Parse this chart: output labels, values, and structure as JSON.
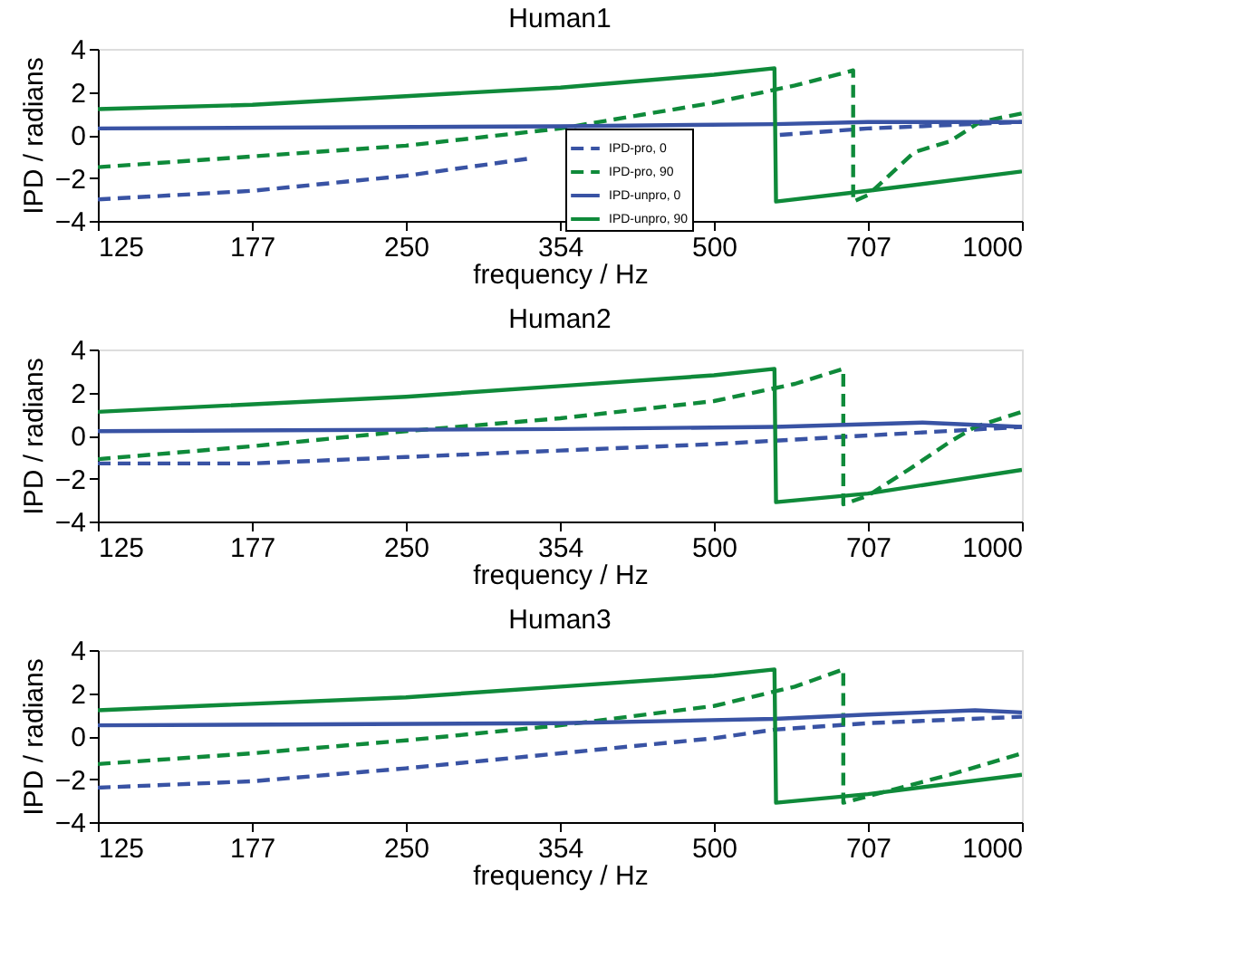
{
  "chart_data": [
    {
      "type": "line",
      "title": "Human1",
      "xlabel": "frequency / Hz",
      "ylabel": "IPD / radians",
      "log": "x",
      "grid": false,
      "legend": "bottom",
      "xlim": [
        125,
        1000
      ],
      "xticks": [
        125,
        {
          "value": 176.8,
          "label": "177"
        },
        250,
        {
          "value": 353.6,
          "label": "354"
        },
        500,
        {
          "value": 707.1,
          "label": "707"
        },
        1000
      ],
      "ylim": [
        -4,
        4
      ],
      "yticks": [
        -4,
        -2,
        0,
        2,
        4
      ],
      "series": [
        {
          "name": "IPD-pro, 0",
          "color": "#3953a4",
          "line_style": "dashed",
          "x": [
            125,
            177,
            250,
            330,
            450,
            580,
            707,
            1000
          ],
          "values": [
            -3.0,
            -2.6,
            -1.9,
            -1.1,
            null,
            0.0,
            0.3,
            0.6
          ]
        },
        {
          "name": "IPD-pro, 90",
          "color": "#0f8a3a",
          "line_style": "dashed",
          "x": [
            125,
            177,
            250,
            354,
            500,
            600,
            684,
            684,
            707,
            785,
            850,
            910,
            1000
          ],
          "values": [
            -1.5,
            -1.0,
            -0.5,
            0.3,
            1.5,
            2.3,
            3.0,
            -3.1,
            -2.8,
            -0.8,
            -0.3,
            0.6,
            1.0
          ]
        },
        {
          "name": "IPD-unpro, 0",
          "color": "#3953a4",
          "line_style": "solid",
          "x": [
            125,
            354,
            573,
            707,
            1000
          ],
          "values": [
            0.3,
            0.4,
            0.5,
            0.6,
            0.6
          ]
        },
        {
          "name": "IPD-unpro, 90",
          "color": "#0f8a3a",
          "line_style": "solid",
          "x": [
            125,
            177,
            250,
            354,
            500,
            573,
            575,
            707,
            1000
          ],
          "values": [
            1.2,
            1.4,
            1.8,
            2.2,
            2.8,
            3.1,
            -3.1,
            -2.6,
            -1.7
          ]
        }
      ]
    },
    {
      "type": "line",
      "title": "Human2",
      "xlabel": "frequency / Hz",
      "ylabel": "IPD / radians",
      "log": "x",
      "grid": false,
      "xlim": [
        125,
        1000
      ],
      "xticks": [
        125,
        {
          "value": 176.8,
          "label": "177"
        },
        250,
        {
          "value": 353.6,
          "label": "354"
        },
        500,
        {
          "value": 707.1,
          "label": "707"
        },
        1000
      ],
      "ylim": [
        -4,
        4
      ],
      "yticks": [
        -4,
        -2,
        0,
        2,
        4
      ],
      "series": [
        {
          "color": "#3953a4",
          "line_style": "dashed",
          "x": [
            125,
            177,
            250,
            354,
            500,
            707,
            1000
          ],
          "values": [
            -1.3,
            -1.3,
            -1.0,
            -0.7,
            -0.4,
            0.0,
            0.4
          ]
        },
        {
          "color": "#0f8a3a",
          "line_style": "dashed",
          "x": [
            125,
            177,
            250,
            354,
            500,
            600,
            669,
            669,
            707,
            780,
            850,
            900,
            1000
          ],
          "values": [
            -1.1,
            -0.5,
            0.2,
            0.8,
            1.6,
            2.4,
            3.1,
            -3.2,
            -2.8,
            -1.5,
            -0.3,
            0.4,
            1.1
          ]
        },
        {
          "color": "#3953a4",
          "line_style": "solid",
          "x": [
            125,
            354,
            573,
            800,
            1000
          ],
          "values": [
            0.2,
            0.3,
            0.4,
            0.6,
            0.4
          ]
        },
        {
          "color": "#0f8a3a",
          "line_style": "solid",
          "x": [
            125,
            250,
            354,
            500,
            573,
            575,
            707,
            1000
          ],
          "values": [
            1.1,
            1.8,
            2.3,
            2.8,
            3.1,
            -3.1,
            -2.7,
            -1.6
          ]
        }
      ]
    },
    {
      "type": "line",
      "title": "Human3",
      "xlabel": "frequency / Hz",
      "ylabel": "IPD / radians",
      "log": "x",
      "grid": false,
      "xlim": [
        125,
        1000
      ],
      "xticks": [
        125,
        {
          "value": 176.8,
          "label": "177"
        },
        250,
        {
          "value": 353.6,
          "label": "354"
        },
        500,
        {
          "value": 707.1,
          "label": "707"
        },
        1000
      ],
      "ylim": [
        -4,
        4
      ],
      "yticks": [
        -4,
        -2,
        0,
        2,
        4
      ],
      "series": [
        {
          "color": "#3953a4",
          "line_style": "dashed",
          "x": [
            125,
            177,
            250,
            354,
            500,
            573,
            707,
            1000
          ],
          "values": [
            -2.4,
            -2.1,
            -1.5,
            -0.8,
            -0.1,
            0.3,
            0.6,
            0.9
          ]
        },
        {
          "color": "#0f8a3a",
          "line_style": "dashed",
          "x": [
            125,
            177,
            250,
            354,
            500,
            600,
            669,
            669,
            707,
            850,
            1000
          ],
          "values": [
            -1.3,
            -0.8,
            -0.2,
            0.5,
            1.4,
            2.3,
            3.1,
            -3.1,
            -2.8,
            -1.8,
            -0.8
          ]
        },
        {
          "color": "#3953a4",
          "line_style": "solid",
          "x": [
            125,
            354,
            573,
            707,
            900,
            1000
          ],
          "values": [
            0.5,
            0.6,
            0.8,
            1.0,
            1.2,
            1.1
          ]
        },
        {
          "color": "#0f8a3a",
          "line_style": "solid",
          "x": [
            125,
            250,
            354,
            500,
            573,
            575,
            707,
            1000
          ],
          "values": [
            1.2,
            1.8,
            2.3,
            2.8,
            3.1,
            -3.1,
            -2.7,
            -1.8
          ]
        }
      ]
    }
  ]
}
